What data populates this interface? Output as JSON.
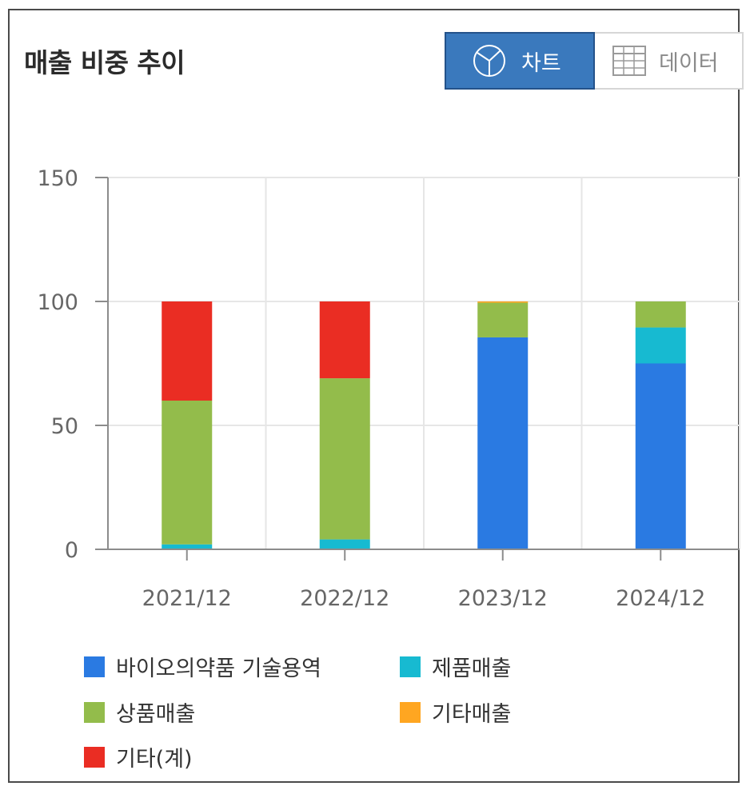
{
  "header": {
    "title": "매출 비중 추이",
    "chart_tab_label": "차트",
    "data_tab_label": "데이터",
    "chart_tab_icon": "pie-chart-icon",
    "data_tab_icon": "table-grid-icon"
  },
  "chart_data": {
    "type": "bar",
    "stacked": true,
    "categories": [
      "2021/12",
      "2022/12",
      "2023/12",
      "2024/12"
    ],
    "ylim": [
      0,
      150
    ],
    "yticks": [
      0,
      50,
      100,
      150
    ],
    "grid": true,
    "legend_position": "bottom",
    "series": [
      {
        "name": "바이오의약품 기술용역",
        "color": "#2a7ae2",
        "values": [
          0,
          0,
          85.5,
          75
        ]
      },
      {
        "name": "제품매출",
        "color": "#17bad1",
        "values": [
          2,
          4,
          0,
          14.5
        ]
      },
      {
        "name": "상품매출",
        "color": "#93bc4b",
        "values": [
          58,
          65,
          14,
          10.5
        ]
      },
      {
        "name": "기타매출",
        "color": "#ffa621",
        "values": [
          0,
          0,
          0.5,
          0
        ]
      },
      {
        "name": "기타(계)",
        "color": "#ea2d23",
        "values": [
          40,
          31,
          0,
          0
        ]
      }
    ]
  }
}
